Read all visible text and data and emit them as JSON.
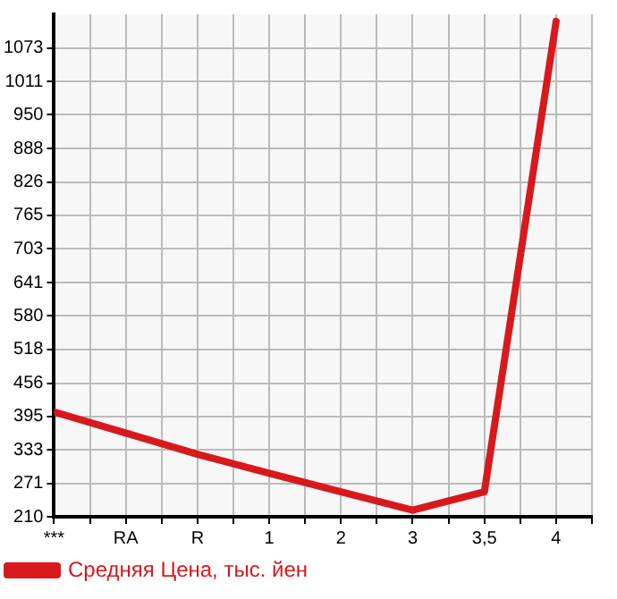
{
  "chart_data": {
    "type": "line",
    "categories": [
      "***",
      "RA",
      "R",
      "1",
      "2",
      "3",
      "3,5",
      "4"
    ],
    "series": [
      {
        "name": "Средняя Цена, тыс. йен",
        "color": "#d7191c",
        "values": [
          403,
          364,
          325,
          290,
          256,
          222,
          256,
          1122
        ]
      }
    ],
    "ylim": [
      210,
      1135
    ],
    "yticks": [
      210,
      271,
      333,
      395,
      456,
      518,
      580,
      641,
      703,
      765,
      826,
      888,
      950,
      1011,
      1073
    ],
    "grid": true,
    "legend": "bottom",
    "marker": "none",
    "line_style": "solid"
  }
}
